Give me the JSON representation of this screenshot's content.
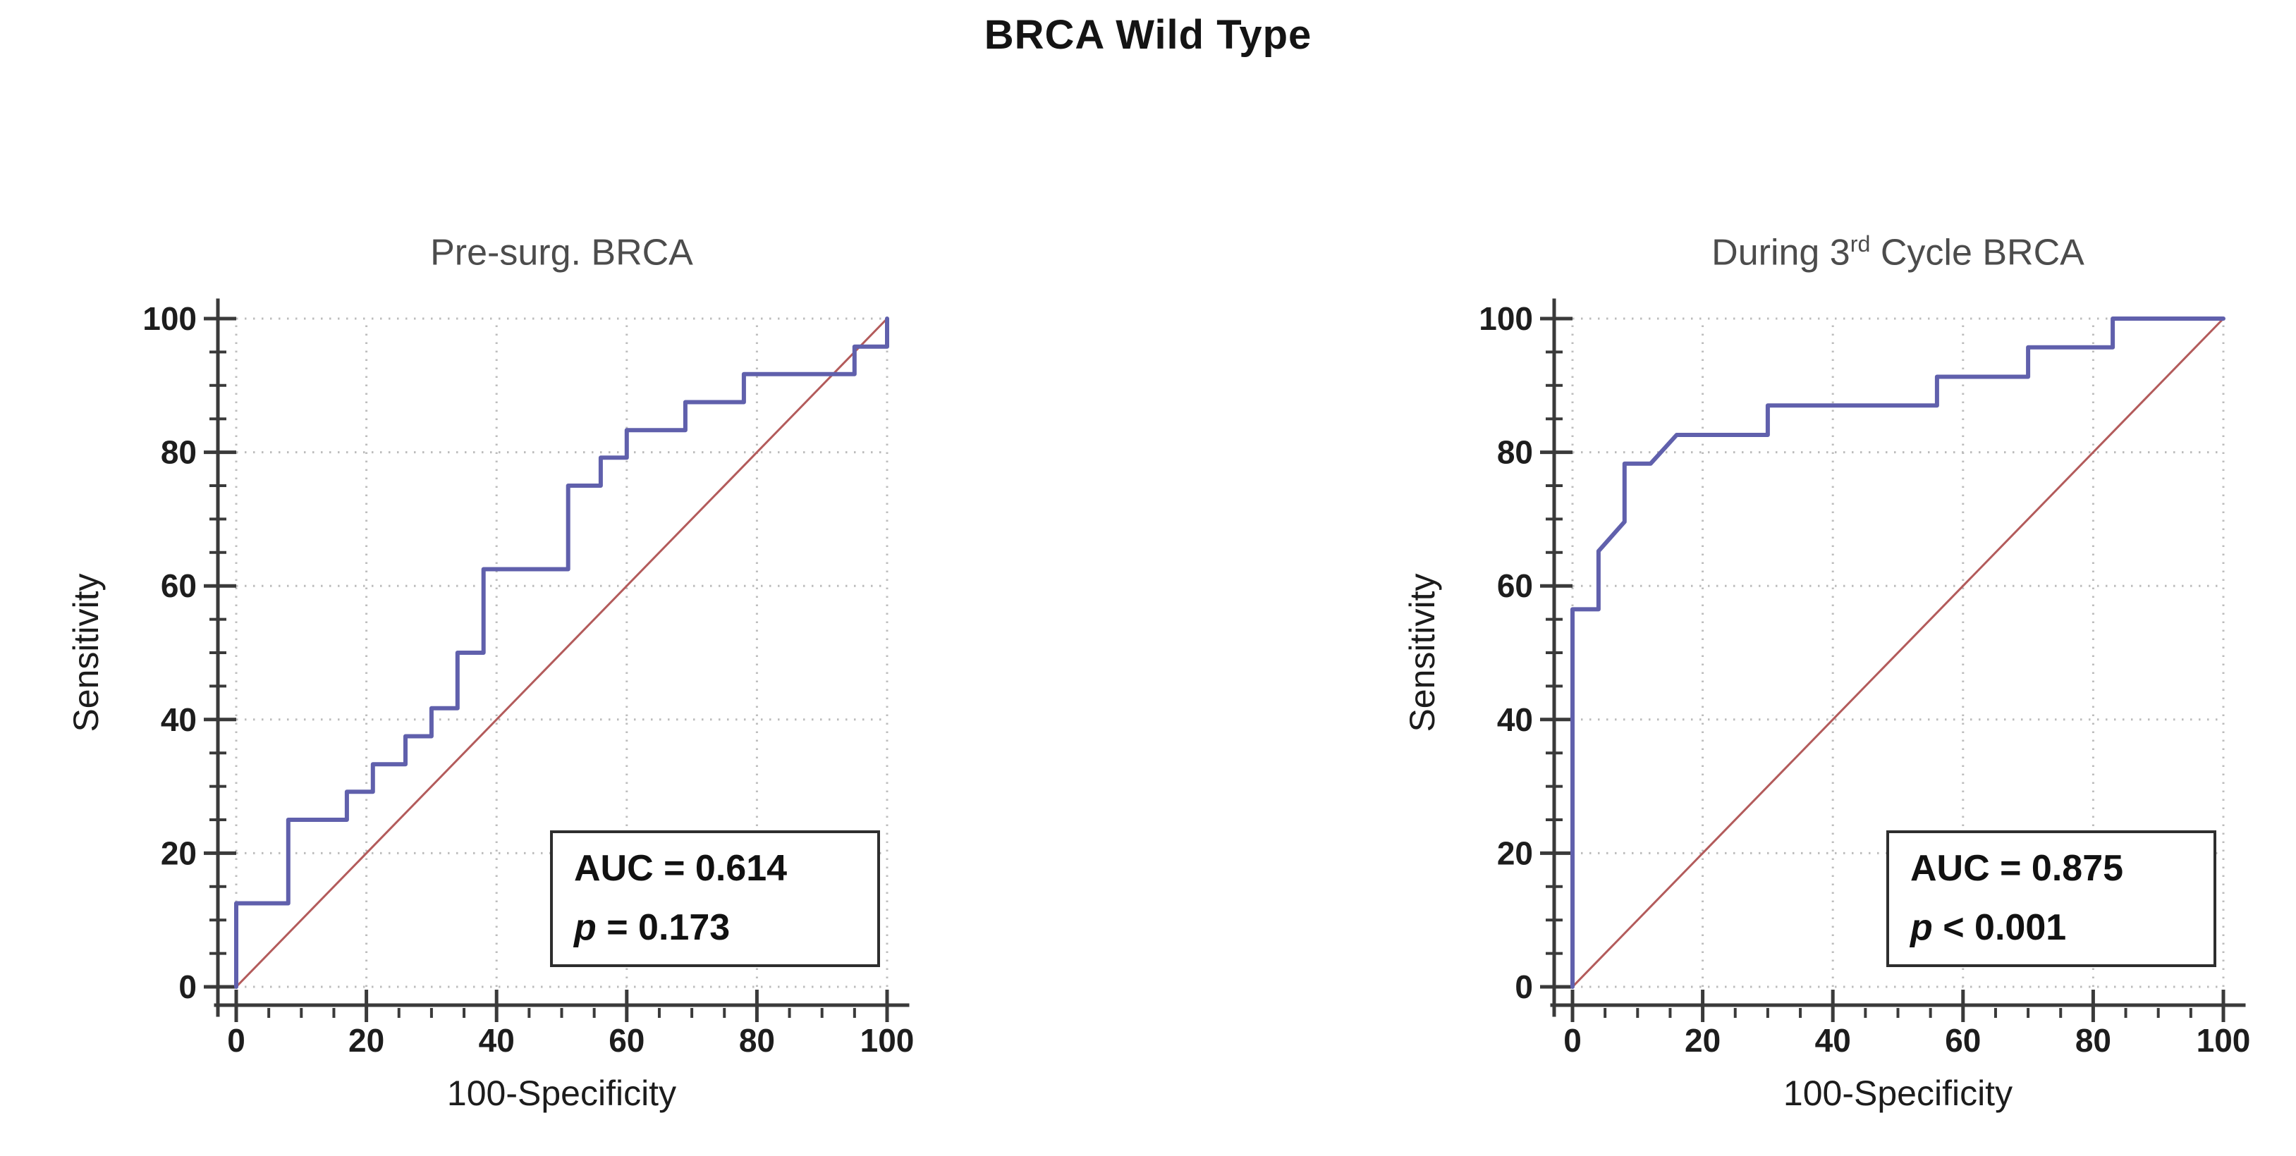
{
  "figure": {
    "title": "BRCA Wild Type"
  },
  "chart_data": [
    {
      "type": "line",
      "chart_kind": "roc-curve",
      "title_prefix": "Pre-surg. BRCA",
      "title_sup": "",
      "title_suffix": "",
      "xlabel": "100-Specificity",
      "ylabel": "Sensitivity",
      "xlim": [
        0,
        100
      ],
      "ylim": [
        0,
        100
      ],
      "ticks_major": [
        0,
        20,
        40,
        60,
        80,
        100
      ],
      "minor_step": 5,
      "grid": "dotted at every 20 units",
      "legend": "none",
      "roc_points": [
        [
          0,
          0
        ],
        [
          0,
          12.5
        ],
        [
          8,
          12.5
        ],
        [
          8,
          25
        ],
        [
          17,
          25
        ],
        [
          17,
          29.2
        ],
        [
          21,
          29.2
        ],
        [
          21,
          33.3
        ],
        [
          26,
          33.3
        ],
        [
          26,
          37.5
        ],
        [
          30,
          37.5
        ],
        [
          30,
          41.7
        ],
        [
          34,
          41.7
        ],
        [
          34,
          50
        ],
        [
          38,
          50
        ],
        [
          38,
          62.5
        ],
        [
          51,
          62.5
        ],
        [
          51,
          75
        ],
        [
          56,
          75
        ],
        [
          56,
          79.2
        ],
        [
          60,
          79.2
        ],
        [
          60,
          83.3
        ],
        [
          69,
          83.3
        ],
        [
          69,
          87.5
        ],
        [
          78,
          87.5
        ],
        [
          78,
          91.7
        ],
        [
          95,
          91.7
        ],
        [
          95,
          95.8
        ],
        [
          100,
          95.8
        ],
        [
          100,
          100
        ]
      ],
      "diagonal_reference": [
        [
          0,
          0
        ],
        [
          100,
          100
        ]
      ],
      "auc": 0.614,
      "p_value": "0.173",
      "auc_label": "AUC = 0.614",
      "p_symbol": "p",
      "p_rest": " = 0.173",
      "curve_color": "#6060ac",
      "diagonal_color": "#b35b5b"
    },
    {
      "type": "line",
      "chart_kind": "roc-curve",
      "title_prefix": "During 3",
      "title_sup": "rd",
      "title_suffix": " Cycle BRCA",
      "xlabel": "100-Specificity",
      "ylabel": "Sensitivity",
      "xlim": [
        0,
        100
      ],
      "ylim": [
        0,
        100
      ],
      "ticks_major": [
        0,
        20,
        40,
        60,
        80,
        100
      ],
      "minor_step": 5,
      "grid": "dotted at every 20 units",
      "legend": "none",
      "roc_points": [
        [
          0,
          0
        ],
        [
          0,
          56.5
        ],
        [
          4,
          56.5
        ],
        [
          4,
          65.2
        ],
        [
          8,
          69.6
        ],
        [
          8,
          78.3
        ],
        [
          12,
          78.3
        ],
        [
          16,
          82.6
        ],
        [
          30,
          82.6
        ],
        [
          30,
          87
        ],
        [
          56,
          87
        ],
        [
          56,
          91.3
        ],
        [
          70,
          91.3
        ],
        [
          70,
          95.7
        ],
        [
          83,
          95.7
        ],
        [
          83,
          100
        ],
        [
          100,
          100
        ]
      ],
      "diagonal_reference": [
        [
          0,
          0
        ],
        [
          100,
          100
        ]
      ],
      "auc": 0.875,
      "p_value": "< 0.001",
      "auc_label": "AUC = 0.875",
      "p_symbol": "p",
      "p_rest": " < 0.001",
      "curve_color": "#6060ac",
      "diagonal_color": "#b35b5b"
    }
  ]
}
